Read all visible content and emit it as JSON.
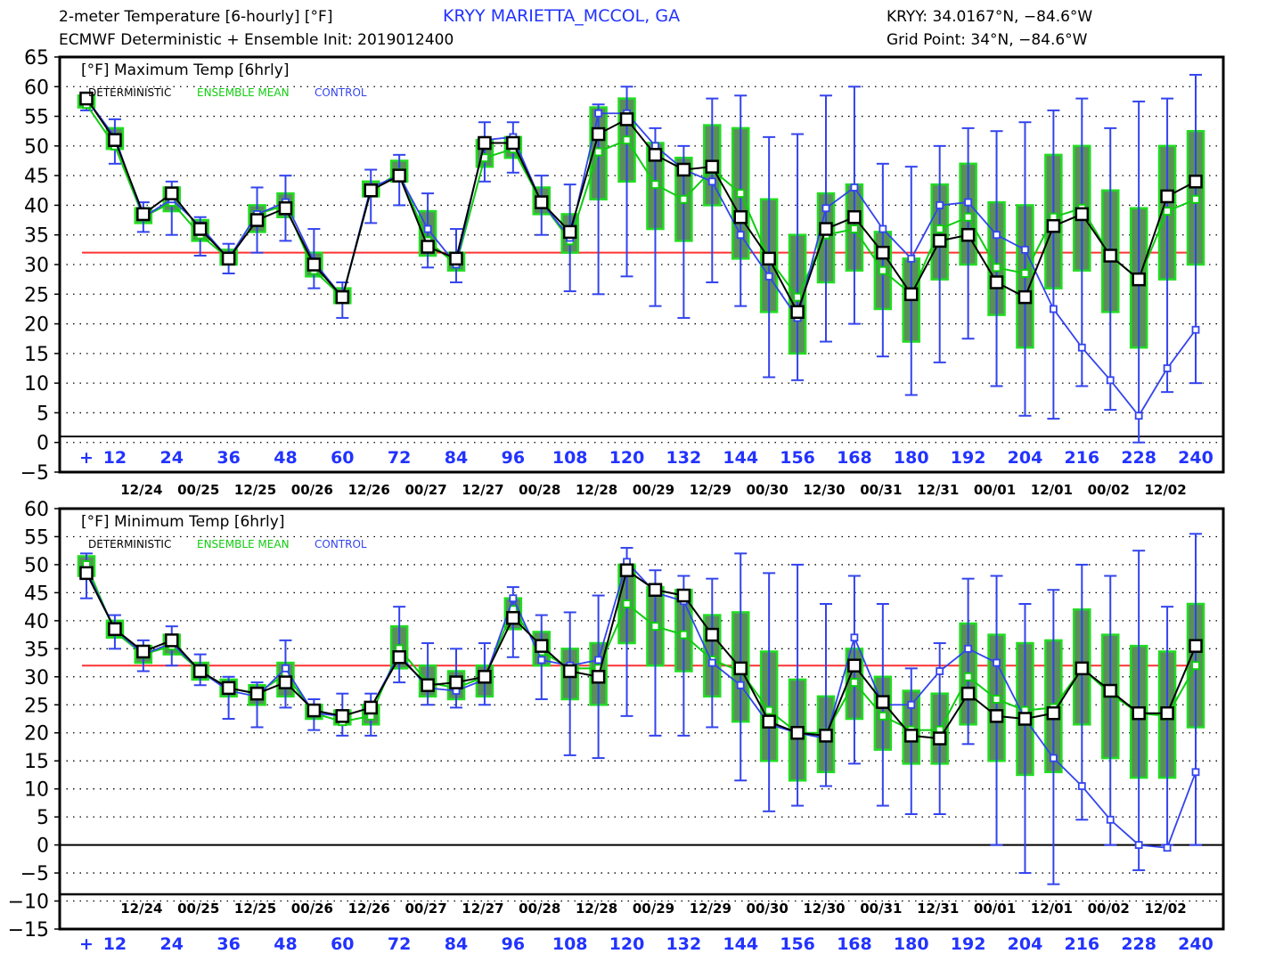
{
  "header": {
    "title": "2-meter Temperature [6-hourly] [°F]",
    "station": "KRYY MARIETTA_MCCOL, GA",
    "coords": "KRYY: 34.0167°N, −84.6°W",
    "model": "ECMWF Deterministic + Ensemble Init: 2019012400",
    "grid_point": "Grid Point: 34°N, −84.6°W"
  },
  "colors": {
    "deterministic": "#000000",
    "ensemble_mean": "#11cc11",
    "control": "#3344ee",
    "freezing_line": "#ff3333",
    "box_fill": "#5a8f5a",
    "box_edge": "#22dd22",
    "axis_tick_label": "#2233ff"
  },
  "chart_data": [
    {
      "type": "line",
      "title": "[°F] Maximum Temp [6hrly]",
      "legend": [
        "DETERMINISTIC",
        "ENSEMBLE MEAN",
        "CONTROL"
      ],
      "legend_position": "top-left",
      "ylim": [
        -5,
        65
      ],
      "yticks": [
        65,
        60,
        55,
        50,
        45,
        40,
        35,
        30,
        25,
        20,
        15,
        10,
        5,
        0,
        -5
      ],
      "xlim": [
        6,
        240
      ],
      "xticks": [
        "+",
        "12",
        "24",
        "36",
        "48",
        "60",
        "72",
        "84",
        "96",
        "108",
        "120",
        "132",
        "144",
        "156",
        "168",
        "180",
        "192",
        "204",
        "216",
        "228",
        "240"
      ],
      "date_labels": [
        "12/24",
        "00/25",
        "12/25",
        "00/26",
        "12/26",
        "00/27",
        "12/27",
        "00/28",
        "12/28",
        "00/29",
        "12/29",
        "00/30",
        "12/30",
        "00/31",
        "12/31",
        "00/01",
        "12/01",
        "00/02",
        "12/02"
      ],
      "reference_line": 32,
      "zero_line": 1,
      "grid": "dotted horizontal",
      "x": [
        6,
        12,
        18,
        24,
        30,
        36,
        42,
        48,
        54,
        60,
        66,
        72,
        78,
        84,
        90,
        96,
        102,
        108,
        114,
        120,
        126,
        132,
        138,
        144,
        150,
        156,
        162,
        168,
        174,
        180,
        186,
        192,
        198,
        204,
        210,
        216,
        222,
        228,
        234,
        240
      ],
      "series": [
        {
          "name": "DETERMINISTIC",
          "values": [
            58,
            51,
            38.5,
            42,
            36,
            31,
            37.5,
            39.5,
            30,
            24.5,
            42.5,
            45,
            33,
            31,
            50.5,
            50.5,
            40.5,
            35.5,
            52,
            54.5,
            48.5,
            46,
            46.5,
            38,
            31,
            22,
            36,
            38,
            32,
            25,
            34,
            35,
            27,
            24.5,
            36.5,
            38.5,
            31.5,
            27.5,
            41.5,
            44
          ]
        },
        {
          "name": "ENSEMBLE MEAN",
          "values": [
            57,
            50,
            38,
            40.5,
            35,
            31,
            38.5,
            40,
            29,
            24.5,
            42.5,
            45.5,
            34,
            30,
            48,
            49.5,
            40.5,
            34,
            49,
            51,
            43.5,
            41,
            46,
            42,
            31,
            24.5,
            35,
            36,
            29,
            25,
            36,
            38,
            29.5,
            28.5,
            38,
            39.5,
            31.5,
            27.5,
            39,
            41
          ]
        },
        {
          "name": "CONTROL",
          "values": [
            58,
            51.5,
            38,
            41,
            36.5,
            31,
            38.5,
            40.5,
            30.5,
            24.5,
            43,
            45,
            36,
            30,
            51,
            51.5,
            40.5,
            34.5,
            55.5,
            55.5,
            50,
            46,
            44,
            35,
            28,
            21,
            39.5,
            43,
            36,
            31,
            40,
            40.5,
            35,
            32.5,
            22.5,
            16,
            10.5,
            4.5,
            12.5,
            19
          ]
        }
      ],
      "ensemble_whiskers": [
        [
          56,
          59
        ],
        [
          47,
          54.5
        ],
        [
          35.5,
          40.5
        ],
        [
          35,
          44
        ],
        [
          31.5,
          38
        ],
        [
          28.5,
          33.5
        ],
        [
          32,
          43
        ],
        [
          34,
          45
        ],
        [
          26,
          36
        ],
        [
          21,
          27
        ],
        [
          37,
          46
        ],
        [
          40,
          48.5
        ],
        [
          29.5,
          42
        ],
        [
          27,
          36
        ],
        [
          44,
          54
        ],
        [
          45.5,
          54
        ],
        [
          35,
          45
        ],
        [
          25.5,
          43.5
        ],
        [
          25,
          57
        ],
        [
          28,
          60
        ],
        [
          23,
          53
        ],
        [
          21,
          50
        ],
        [
          27,
          58
        ],
        [
          23,
          58.5
        ],
        [
          11,
          51.5
        ],
        [
          10.5,
          52
        ],
        [
          17,
          58.5
        ],
        [
          20,
          60
        ],
        [
          14.5,
          47
        ],
        [
          8,
          46.5
        ],
        [
          13.5,
          50
        ],
        [
          17.5,
          53
        ],
        [
          9.5,
          52.5
        ],
        [
          4.5,
          54
        ],
        [
          4,
          56
        ],
        [
          9.5,
          58
        ],
        [
          5.5,
          53
        ],
        [
          0,
          57.5
        ],
        [
          8.5,
          58
        ],
        [
          10,
          62
        ]
      ],
      "ensemble_boxes": [
        [
          56.5,
          58.5
        ],
        [
          49.5,
          53
        ],
        [
          37,
          39.5
        ],
        [
          39,
          43
        ],
        [
          34,
          37.5
        ],
        [
          30,
          32.5
        ],
        [
          35.5,
          40
        ],
        [
          38,
          42
        ],
        [
          28,
          32
        ],
        [
          23.5,
          26
        ],
        [
          41.5,
          44
        ],
        [
          44,
          47.5
        ],
        [
          31.5,
          39
        ],
        [
          29,
          32
        ],
        [
          46.5,
          51
        ],
        [
          48,
          51.5
        ],
        [
          38.5,
          43
        ],
        [
          32,
          38.5
        ],
        [
          41,
          56.5
        ],
        [
          44,
          58
        ],
        [
          36,
          50.5
        ],
        [
          34,
          48
        ],
        [
          40,
          53.5
        ],
        [
          31,
          53
        ],
        [
          22,
          41
        ],
        [
          15,
          35
        ],
        [
          27,
          42
        ],
        [
          29,
          43.5
        ],
        [
          22.5,
          35.5
        ],
        [
          17,
          31
        ],
        [
          27.5,
          43.5
        ],
        [
          30,
          47
        ],
        [
          21.5,
          40.5
        ],
        [
          16,
          40
        ],
        [
          26,
          48.5
        ],
        [
          29,
          50
        ],
        [
          22,
          42.5
        ],
        [
          16,
          39.5
        ],
        [
          27.5,
          50
        ],
        [
          30,
          52.5
        ]
      ]
    },
    {
      "type": "line",
      "title": "[°F] Minimum Temp [6hrly]",
      "legend": [
        "DETERMINISTIC",
        "ENSEMBLE MEAN",
        "CONTROL"
      ],
      "legend_position": "top-left",
      "ylim": [
        -15,
        60
      ],
      "yticks": [
        60,
        55,
        50,
        45,
        40,
        35,
        30,
        25,
        20,
        15,
        10,
        5,
        0,
        -5,
        -10,
        -15
      ],
      "xlim": [
        6,
        240
      ],
      "xticks": [
        "+",
        "12",
        "24",
        "36",
        "48",
        "60",
        "72",
        "84",
        "96",
        "108",
        "120",
        "132",
        "144",
        "156",
        "168",
        "180",
        "192",
        "204",
        "216",
        "228",
        "240"
      ],
      "date_labels": [
        "12/24",
        "00/25",
        "12/25",
        "00/26",
        "12/26",
        "00/27",
        "12/27",
        "00/28",
        "12/28",
        "00/29",
        "12/29",
        "00/30",
        "12/30",
        "00/31",
        "12/31",
        "00/01",
        "12/01",
        "00/02",
        "12/02"
      ],
      "reference_line": 32,
      "zero_line": 0,
      "grid": "dotted horizontal",
      "x": [
        6,
        12,
        18,
        24,
        30,
        36,
        42,
        48,
        54,
        60,
        66,
        72,
        78,
        84,
        90,
        96,
        102,
        108,
        114,
        120,
        126,
        132,
        138,
        144,
        150,
        156,
        162,
        168,
        174,
        180,
        186,
        192,
        198,
        204,
        210,
        216,
        222,
        228,
        234,
        240
      ],
      "series": [
        {
          "name": "DETERMINISTIC",
          "values": [
            48.5,
            38.5,
            34.5,
            36.5,
            31,
            28,
            27,
            29,
            24,
            23,
            24.5,
            33.5,
            28.5,
            29,
            30,
            40.5,
            35.5,
            31,
            30,
            49,
            45.5,
            44.5,
            37.5,
            31.5,
            22,
            20,
            19.5,
            32,
            25.5,
            19.5,
            19,
            27,
            23,
            22.5,
            23.5,
            31.5,
            27.5,
            23.5,
            23.5,
            35.5
          ]
        },
        {
          "name": "ENSEMBLE MEAN",
          "values": [
            50,
            38,
            34,
            35.5,
            31,
            28,
            27,
            30.5,
            23.5,
            22,
            23,
            35,
            29,
            28,
            30,
            42,
            34.5,
            31.5,
            31.5,
            43,
            39,
            37.5,
            33,
            31,
            24,
            20,
            20,
            29,
            23,
            20.5,
            20.5,
            30,
            26,
            24,
            24.5,
            31.5,
            27,
            23.5,
            23,
            32
          ]
        },
        {
          "name": "CONTROL",
          "values": [
            49,
            38.5,
            34,
            36,
            31,
            27.5,
            26.5,
            31.5,
            23.5,
            23,
            24.5,
            34,
            28,
            27.5,
            29.5,
            44,
            33,
            32,
            33,
            50.5,
            45,
            43.5,
            32.5,
            28.5,
            21.5,
            20,
            19,
            37,
            25,
            25,
            31,
            35,
            32.5,
            22.5,
            15.5,
            10.5,
            4.5,
            0,
            -0.5,
            13
          ]
        }
      ],
      "ensemble_whiskers": [
        [
          44,
          52
        ],
        [
          35,
          41
        ],
        [
          31,
          36.5
        ],
        [
          32,
          39
        ],
        [
          28.5,
          34
        ],
        [
          22.5,
          30
        ],
        [
          21,
          29
        ],
        [
          24.5,
          36.5
        ],
        [
          20.5,
          26
        ],
        [
          19.5,
          27
        ],
        [
          19.5,
          27
        ],
        [
          29,
          42.5
        ],
        [
          25,
          36
        ],
        [
          24.5,
          35
        ],
        [
          25,
          36
        ],
        [
          33.5,
          46
        ],
        [
          26,
          41
        ],
        [
          16,
          41.5
        ],
        [
          15.5,
          44.5
        ],
        [
          23,
          53
        ],
        [
          19.5,
          49
        ],
        [
          19.5,
          48
        ],
        [
          21,
          47.5
        ],
        [
          11.5,
          52
        ],
        [
          6,
          48.5
        ],
        [
          7,
          50
        ],
        [
          10.5,
          43
        ],
        [
          14.5,
          48
        ],
        [
          7,
          43
        ],
        [
          5.5,
          31.5
        ],
        [
          5.5,
          36
        ],
        [
          18,
          47.5
        ],
        [
          0,
          48
        ],
        [
          -5,
          43
        ],
        [
          -7,
          45.5
        ],
        [
          4.5,
          50
        ],
        [
          0,
          48
        ],
        [
          -4.5,
          52.5
        ],
        [
          0,
          42.5
        ],
        [
          0,
          55.5
        ]
      ],
      "ensemble_boxes": [
        [
          48,
          51.5
        ],
        [
          37,
          40
        ],
        [
          32.5,
          35.5
        ],
        [
          34,
          37.5
        ],
        [
          29.5,
          32.5
        ],
        [
          26.5,
          29.5
        ],
        [
          25,
          28.5
        ],
        [
          26.5,
          32.5
        ],
        [
          22.5,
          25
        ],
        [
          21.5,
          24
        ],
        [
          21.5,
          25
        ],
        [
          31.5,
          39
        ],
        [
          26.5,
          32
        ],
        [
          26,
          31
        ],
        [
          26.5,
          32
        ],
        [
          38.5,
          44
        ],
        [
          32,
          38
        ],
        [
          26,
          35
        ],
        [
          25,
          36
        ],
        [
          36,
          50
        ],
        [
          32,
          46
        ],
        [
          31,
          45.5
        ],
        [
          26.5,
          41
        ],
        [
          22,
          41.5
        ],
        [
          15,
          34.5
        ],
        [
          11.5,
          29.5
        ],
        [
          13,
          26.5
        ],
        [
          22.5,
          35
        ],
        [
          17,
          30
        ],
        [
          14.5,
          27.5
        ],
        [
          14.5,
          27
        ],
        [
          21.5,
          39.5
        ],
        [
          15,
          37.5
        ],
        [
          12.5,
          36
        ],
        [
          13,
          36.5
        ],
        [
          21.5,
          42
        ],
        [
          15.5,
          37.5
        ],
        [
          12,
          35.5
        ],
        [
          12,
          34.5
        ],
        [
          21,
          43
        ]
      ]
    }
  ]
}
